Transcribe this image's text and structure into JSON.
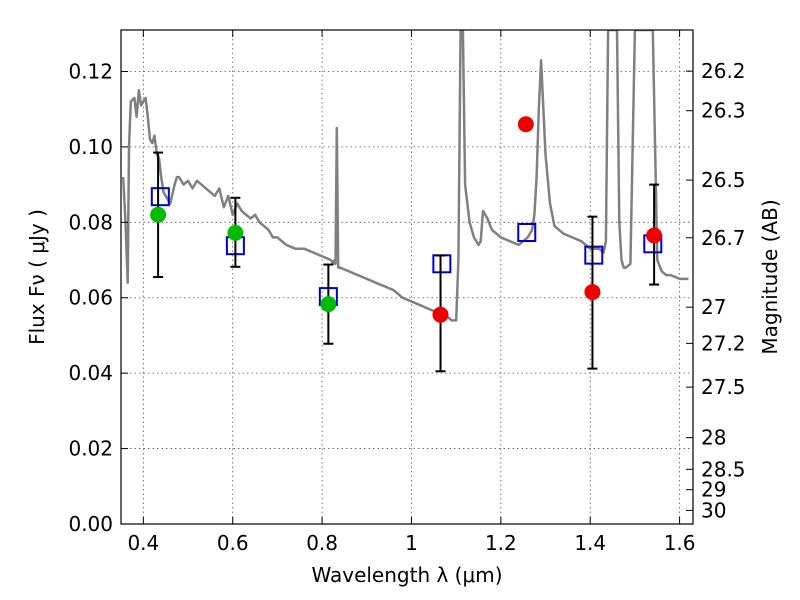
{
  "chart_data": {
    "type": "scatter",
    "xlabel": "Wavelength  λ (μm)",
    "ylabel": "Flux  Fν  ( μJy )",
    "y2label": "Magnitude (AB)",
    "xlim": [
      0.35,
      1.63
    ],
    "ylim": [
      0.0,
      0.131
    ],
    "grid": true,
    "x_ticks": [
      0.4,
      0.6,
      0.8,
      1.0,
      1.2,
      1.4,
      1.6
    ],
    "x_tick_labels": [
      "0.4",
      "0.6",
      "0.8",
      "1",
      "1.2",
      "1.4",
      "1.6"
    ],
    "y_ticks": [
      0.0,
      0.02,
      0.04,
      0.06,
      0.08,
      0.1,
      0.12
    ],
    "y_tick_labels": [
      "0.00",
      "0.02",
      "0.04",
      "0.06",
      "0.08",
      "0.10",
      "0.12"
    ],
    "mag_ticks": [
      {
        "label": "26.2",
        "flux": 0.1201
      },
      {
        "label": "26.3",
        "flux": 0.1096
      },
      {
        "label": "26.5",
        "flux": 0.0912
      },
      {
        "label": "26.7",
        "flux": 0.0759
      },
      {
        "label": "27",
        "flux": 0.0575
      },
      {
        "label": "27.2",
        "flux": 0.0479
      },
      {
        "label": "27.5",
        "flux": 0.0363
      },
      {
        "label": "28",
        "flux": 0.0229
      },
      {
        "label": "28.5",
        "flux": 0.0145
      },
      {
        "label": "29",
        "flux": 0.0091
      },
      {
        "label": "30",
        "flux": 0.0036
      }
    ],
    "series": [
      {
        "marker": "line",
        "color": "#808080",
        "x": [
          0.355,
          0.36,
          0.365,
          0.368,
          0.372,
          0.38,
          0.385,
          0.39,
          0.395,
          0.4,
          0.405,
          0.41,
          0.415,
          0.42,
          0.425,
          0.43,
          0.435,
          0.44,
          0.445,
          0.45,
          0.455,
          0.46,
          0.47,
          0.475,
          0.48,
          0.49,
          0.5,
          0.51,
          0.52,
          0.53,
          0.54,
          0.55,
          0.56,
          0.57,
          0.58,
          0.59,
          0.6,
          0.61,
          0.62,
          0.63,
          0.64,
          0.65,
          0.66,
          0.67,
          0.68,
          0.69,
          0.7,
          0.71,
          0.72,
          0.74,
          0.76,
          0.78,
          0.8,
          0.82,
          0.825,
          0.828,
          0.83,
          0.833,
          0.836,
          0.84,
          0.86,
          0.88,
          0.9,
          0.92,
          0.94,
          0.96,
          0.98,
          1.0,
          1.02,
          1.04,
          1.06,
          1.08,
          1.09,
          1.1,
          1.105,
          1.11,
          1.115,
          1.12,
          1.13,
          1.14,
          1.15,
          1.155,
          1.16,
          1.17,
          1.18,
          1.19,
          1.2,
          1.22,
          1.24,
          1.25,
          1.26,
          1.27,
          1.275,
          1.28,
          1.285,
          1.29,
          1.3,
          1.31,
          1.32,
          1.34,
          1.36,
          1.38,
          1.4,
          1.42,
          1.43,
          1.435,
          1.44,
          1.45,
          1.46,
          1.465,
          1.47,
          1.475,
          1.48,
          1.49,
          1.5,
          1.51,
          1.52,
          1.53,
          1.54,
          1.55,
          1.56,
          1.57,
          1.58,
          1.6,
          1.62
        ],
        "y": [
          0.092,
          0.08,
          0.064,
          0.1,
          0.112,
          0.113,
          0.108,
          0.115,
          0.111,
          0.112,
          0.113,
          0.108,
          0.102,
          0.101,
          0.103,
          0.098,
          0.097,
          0.092,
          0.088,
          0.087,
          0.086,
          0.085,
          0.09,
          0.092,
          0.092,
          0.09,
          0.091,
          0.089,
          0.091,
          0.09,
          0.089,
          0.088,
          0.087,
          0.089,
          0.084,
          0.087,
          0.082,
          0.085,
          0.083,
          0.082,
          0.081,
          0.082,
          0.08,
          0.079,
          0.078,
          0.076,
          0.076,
          0.075,
          0.074,
          0.073,
          0.073,
          0.072,
          0.071,
          0.07,
          0.069,
          0.07,
          0.069,
          0.105,
          0.068,
          0.068,
          0.067,
          0.066,
          0.065,
          0.064,
          0.063,
          0.062,
          0.06,
          0.059,
          0.058,
          0.057,
          0.056,
          0.055,
          0.054,
          0.054,
          0.07,
          0.131,
          0.131,
          0.09,
          0.08,
          0.076,
          0.074,
          0.075,
          0.083,
          0.081,
          0.078,
          0.077,
          0.076,
          0.075,
          0.074,
          0.075,
          0.076,
          0.078,
          0.082,
          0.092,
          0.11,
          0.123,
          0.098,
          0.085,
          0.079,
          0.077,
          0.076,
          0.075,
          0.073,
          0.073,
          0.072,
          0.075,
          0.131,
          0.131,
          0.131,
          0.08,
          0.07,
          0.068,
          0.068,
          0.069,
          0.131,
          0.131,
          0.131,
          0.131,
          0.131,
          0.07,
          0.067,
          0.066,
          0.066,
          0.065,
          0.065
        ]
      },
      {
        "marker": "open-square",
        "color": "#0000cc",
        "x": [
          0.438,
          0.606,
          0.814,
          1.068,
          1.258,
          1.408,
          1.54
        ],
        "y": [
          0.0868,
          0.0738,
          0.0603,
          0.069,
          0.0773,
          0.0713,
          0.0743
        ]
      },
      {
        "marker": "filled-circle",
        "color": "#00bb00",
        "x": [
          0.433,
          0.606,
          0.814
        ],
        "y": [
          0.082,
          0.0772,
          0.0583
        ],
        "yerr_low": [
          0.0655,
          0.0682,
          0.0478
        ],
        "yerr_high": [
          0.0985,
          0.0865,
          0.0688
        ]
      },
      {
        "marker": "filled-circle",
        "color": "#ee0000",
        "x": [
          1.065,
          1.256,
          1.405,
          1.543
        ],
        "y": [
          0.0555,
          0.106,
          0.0615,
          0.0765
        ],
        "yerr_low": [
          0.0405,
          0.131,
          0.0412,
          0.0635
        ],
        "yerr_high": [
          0.0712,
          0.131,
          0.0815,
          0.09
        ]
      }
    ]
  }
}
